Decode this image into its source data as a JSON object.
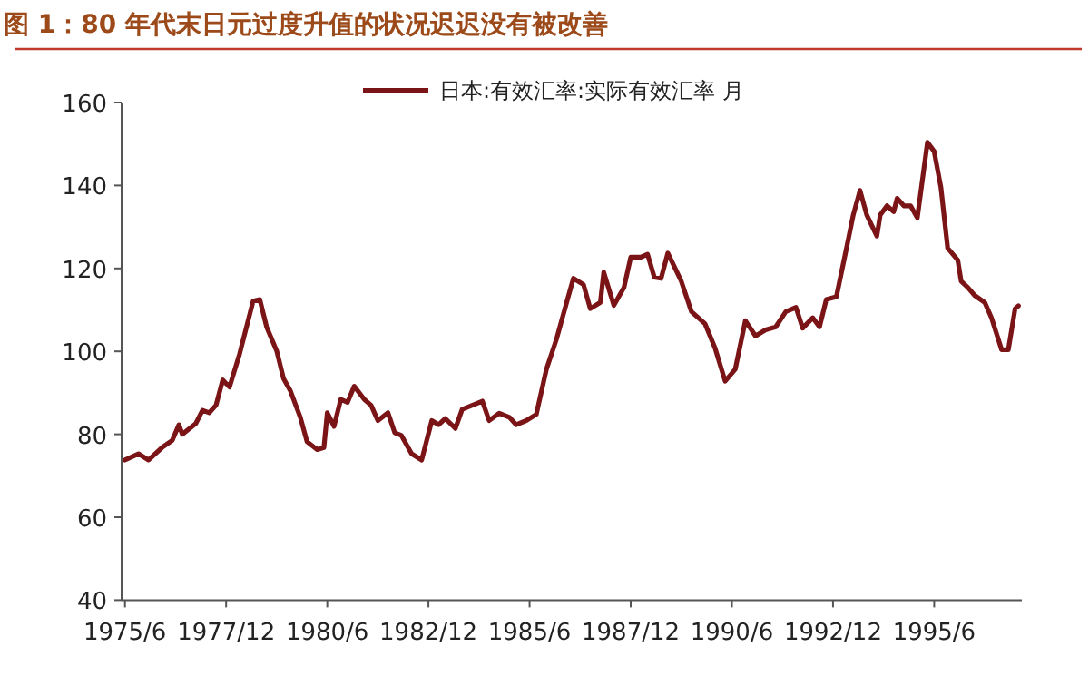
{
  "chart_data": {
    "type": "line",
    "title": "图 1：80 年代末日元过度升值的状况迟迟没有被改善",
    "legend": "top",
    "x": [
      "1975-06",
      "1975-10",
      "1976-01",
      "1976-05",
      "1976-08",
      "1976-10",
      "1976-11",
      "1977-03",
      "1977-05",
      "1977-07",
      "1977-09",
      "1977-11",
      "1978-01",
      "1978-04",
      "1978-08",
      "1978-10",
      "1978-12",
      "1979-03",
      "1979-05",
      "1979-07",
      "1979-10",
      "1979-12",
      "1980-03",
      "1980-05",
      "1980-06",
      "1980-08",
      "1980-10",
      "1980-12",
      "1981-02",
      "1981-05",
      "1981-07",
      "1981-09",
      "1981-12",
      "1982-02",
      "1982-04",
      "1982-07",
      "1982-10",
      "1983-01",
      "1983-03",
      "1983-05",
      "1983-08",
      "1983-10",
      "1984-04",
      "1984-06",
      "1984-09",
      "1984-12",
      "1985-02",
      "1985-05",
      "1985-08",
      "1985-11",
      "1986-02",
      "1986-05",
      "1986-07",
      "1986-10",
      "1986-12",
      "1987-03",
      "1987-04",
      "1987-07",
      "1987-10",
      "1987-12",
      "1988-03",
      "1988-05",
      "1988-07",
      "1988-09",
      "1988-11",
      "1989-03",
      "1989-06",
      "1989-10",
      "1990-01",
      "1990-04",
      "1990-07",
      "1990-10",
      "1991-01",
      "1991-04",
      "1991-07",
      "1991-10",
      "1992-01",
      "1992-03",
      "1992-06",
      "1992-08",
      "1992-10",
      "1993-01",
      "1993-04",
      "1993-06",
      "1993-08",
      "1993-10",
      "1994-01",
      "1994-02",
      "1994-04",
      "1994-06",
      "1994-07",
      "1994-09",
      "1994-11",
      "1995-01",
      "1995-04",
      "1995-06",
      "1995-08",
      "1995-10",
      "1996-01",
      "1996-02",
      "1996-04",
      "1996-06",
      "1996-09",
      "1996-11",
      "1997-02",
      "1997-04",
      "1997-06",
      "1997-07"
    ],
    "series": [
      {
        "name": "日本:有效汇率:实际有效汇率 月",
        "color": "#7b1416",
        "values": [
          73.8,
          75.3,
          73.8,
          76.8,
          78.5,
          82.3,
          80,
          82.6,
          85.8,
          85.2,
          87,
          93.1,
          91.4,
          99.4,
          112.1,
          112.5,
          105.9,
          100.1,
          93.5,
          90.6,
          84.1,
          78.2,
          76.3,
          76.8,
          85.2,
          81.9,
          88.4,
          87.7,
          91.6,
          88.4,
          87,
          83.3,
          85.2,
          80.4,
          79.7,
          75.3,
          73.8,
          83.3,
          82.3,
          83.8,
          81.4,
          86,
          88,
          83.3,
          85.1,
          84.1,
          82.3,
          83.3,
          84.8,
          95.7,
          103,
          111.8,
          117.6,
          116.1,
          110.3,
          111.8,
          119.1,
          111.1,
          115.4,
          122.7,
          122.7,
          123.4,
          117.9,
          117.6,
          123.7,
          116.9,
          109.6,
          106.7,
          100.8,
          92.8,
          95.7,
          107.4,
          103.7,
          105.2,
          105.9,
          109.6,
          110.6,
          105.6,
          108.1,
          105.9,
          112.5,
          113.2,
          124.9,
          132.9,
          138.8,
          132.9,
          127.8,
          132.9,
          135.1,
          133.7,
          136.9,
          135.1,
          135.1,
          132.2,
          150.4,
          148.2,
          139.5,
          124.9,
          122,
          116.9,
          115.4,
          113.5,
          111.8,
          108.1,
          100.4,
          100.4,
          110.3,
          111
        ]
      }
    ],
    "xlim": [
      "1975-05",
      "1997-08"
    ],
    "xticks": [
      {
        "value": "1975-06",
        "label": "1975/6"
      },
      {
        "value": "1977-12",
        "label": "1977/12"
      },
      {
        "value": "1980-06",
        "label": "1980/6"
      },
      {
        "value": "1982-12",
        "label": "1982/12"
      },
      {
        "value": "1985-06",
        "label": "1985/6"
      },
      {
        "value": "1987-12",
        "label": "1987/12"
      },
      {
        "value": "1990-06",
        "label": "1990/6"
      },
      {
        "value": "1992-12",
        "label": "1992/12"
      },
      {
        "value": "1995-06",
        "label": "1995/6"
      }
    ],
    "ylim": [
      40,
      160
    ],
    "yticks": [
      40,
      60,
      80,
      100,
      120,
      140,
      160
    ]
  }
}
